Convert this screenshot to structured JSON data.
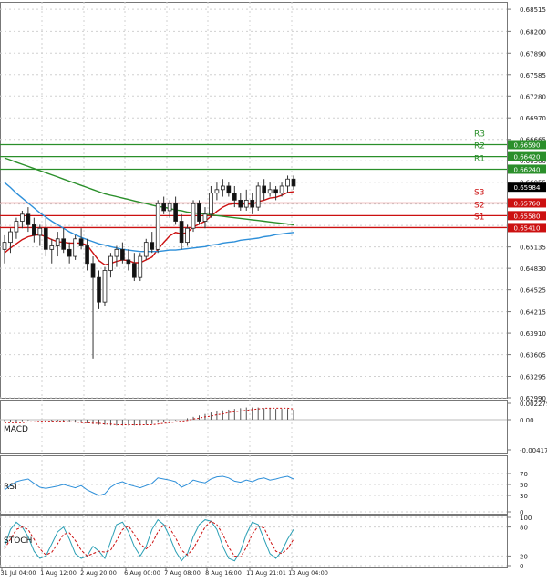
{
  "chart_data": [
    {
      "type": "candlestick",
      "panel": "price",
      "y_ticks": [
        "0.68515",
        "0.68200",
        "0.67890",
        "0.67585",
        "0.67280",
        "0.66970",
        "0.66665",
        "0.66360",
        "0.66055",
        "0.65745",
        "0.65440",
        "0.65135",
        "0.64830",
        "0.64525",
        "0.64215",
        "0.63910",
        "0.63605",
        "0.63295",
        "0.62990"
      ],
      "ylim": [
        0.6299,
        0.6862
      ],
      "candles": [
        [
          0.651,
          0.653,
          0.649,
          0.652
        ],
        [
          0.652,
          0.654,
          0.6505,
          0.6535
        ],
        [
          0.6535,
          0.6555,
          0.6525,
          0.655
        ],
        [
          0.655,
          0.6565,
          0.654,
          0.656
        ],
        [
          0.656,
          0.657,
          0.6535,
          0.6545
        ],
        [
          0.6545,
          0.6555,
          0.652,
          0.653
        ],
        [
          0.653,
          0.6545,
          0.6515,
          0.654
        ],
        [
          0.654,
          0.6555,
          0.65,
          0.651
        ],
        [
          0.651,
          0.6525,
          0.649,
          0.6515
        ],
        [
          0.6515,
          0.6535,
          0.65,
          0.6525
        ],
        [
          0.6525,
          0.654,
          0.6505,
          0.651
        ],
        [
          0.651,
          0.652,
          0.649,
          0.65
        ],
        [
          0.65,
          0.653,
          0.6495,
          0.6525
        ],
        [
          0.6525,
          0.654,
          0.651,
          0.6515
        ],
        [
          0.6515,
          0.6525,
          0.648,
          0.649
        ],
        [
          0.649,
          0.65,
          0.6355,
          0.647
        ],
        [
          0.647,
          0.648,
          0.6425,
          0.6435
        ],
        [
          0.6435,
          0.6485,
          0.643,
          0.648
        ],
        [
          0.648,
          0.6505,
          0.647,
          0.65
        ],
        [
          0.65,
          0.6515,
          0.6485,
          0.651
        ],
        [
          0.651,
          0.652,
          0.649,
          0.6495
        ],
        [
          0.6495,
          0.651,
          0.648,
          0.649
        ],
        [
          0.649,
          0.6505,
          0.6465,
          0.647
        ],
        [
          0.647,
          0.6505,
          0.6465,
          0.65
        ],
        [
          0.65,
          0.6525,
          0.6495,
          0.652
        ],
        [
          0.652,
          0.6535,
          0.6505,
          0.651
        ],
        [
          0.651,
          0.658,
          0.6505,
          0.6575
        ],
        [
          0.6575,
          0.6585,
          0.656,
          0.6565
        ],
        [
          0.6565,
          0.658,
          0.6555,
          0.6575
        ],
        [
          0.6575,
          0.6585,
          0.6545,
          0.655
        ],
        [
          0.655,
          0.656,
          0.651,
          0.652
        ],
        [
          0.652,
          0.6545,
          0.6515,
          0.654
        ],
        [
          0.654,
          0.658,
          0.6535,
          0.6575
        ],
        [
          0.6575,
          0.658,
          0.6545,
          0.655
        ],
        [
          0.655,
          0.657,
          0.654,
          0.656
        ],
        [
          0.656,
          0.66,
          0.6555,
          0.659
        ],
        [
          0.659,
          0.6605,
          0.658,
          0.6595
        ],
        [
          0.6595,
          0.661,
          0.6585,
          0.66
        ],
        [
          0.66,
          0.6605,
          0.6585,
          0.659
        ],
        [
          0.659,
          0.66,
          0.657,
          0.658
        ],
        [
          0.658,
          0.659,
          0.6565,
          0.657
        ],
        [
          0.657,
          0.6595,
          0.6565,
          0.658
        ],
        [
          0.658,
          0.659,
          0.656,
          0.657
        ],
        [
          0.657,
          0.6605,
          0.6565,
          0.66
        ],
        [
          0.66,
          0.661,
          0.658,
          0.659
        ],
        [
          0.659,
          0.6605,
          0.6585,
          0.6595
        ],
        [
          0.6595,
          0.66,
          0.658,
          0.659
        ],
        [
          0.659,
          0.6605,
          0.6585,
          0.66
        ],
        [
          0.66,
          0.6615,
          0.659,
          0.661
        ],
        [
          0.661,
          0.6615,
          0.6595,
          0.66
        ]
      ],
      "overlays": [
        {
          "color": "#cc1010",
          "values": [
            0.6505,
            0.6512,
            0.6518,
            0.6524,
            0.6528,
            0.653,
            0.6531,
            0.6528,
            0.6524,
            0.6521,
            0.652,
            0.6519,
            0.6519,
            0.6519,
            0.6516,
            0.6505,
            0.6494,
            0.6488,
            0.649,
            0.6493,
            0.6495,
            0.6494,
            0.6491,
            0.6491,
            0.6495,
            0.6499,
            0.651,
            0.652,
            0.6529,
            0.6534,
            0.6532,
            0.6534,
            0.6542,
            0.6546,
            0.655,
            0.6557,
            0.6564,
            0.657,
            0.6574,
            0.6575,
            0.6574,
            0.6575,
            0.6574,
            0.6578,
            0.658,
            0.6583,
            0.6584,
            0.6587,
            0.6591,
            0.6592
          ]
        },
        {
          "color": "#2d8fd9",
          "values": [
            0.6605,
            0.6598,
            0.659,
            0.6583,
            0.6576,
            0.6569,
            0.6562,
            0.6556,
            0.655,
            0.6545,
            0.654,
            0.6535,
            0.6531,
            0.6527,
            0.6524,
            0.6521,
            0.6518,
            0.6516,
            0.6514,
            0.6512,
            0.651,
            0.6509,
            0.6508,
            0.6507,
            0.6507,
            0.6507,
            0.6507,
            0.6508,
            0.6509,
            0.6509,
            0.651,
            0.6511,
            0.6512,
            0.6513,
            0.6514,
            0.6516,
            0.6517,
            0.6519,
            0.652,
            0.6521,
            0.6523,
            0.6524,
            0.6525,
            0.6526,
            0.6528,
            0.6529,
            0.6531,
            0.6532,
            0.6533,
            0.6534
          ]
        },
        {
          "color": "#2a8f2a",
          "values": [
            0.664,
            0.6637,
            0.6634,
            0.6631,
            0.6628,
            0.6625,
            0.6622,
            0.6619,
            0.6616,
            0.6613,
            0.661,
            0.6607,
            0.6604,
            0.6601,
            0.6598,
            0.6595,
            0.6592,
            0.6589,
            0.6587,
            0.6585,
            0.6583,
            0.6581,
            0.6579,
            0.6577,
            0.6575,
            0.6573,
            0.6571,
            0.657,
            0.6568,
            0.6566,
            0.6565,
            0.6563,
            0.6562,
            0.6561,
            0.656,
            0.6559,
            0.6558,
            0.6557,
            0.6556,
            0.6555,
            0.6554,
            0.6553,
            0.6552,
            0.6551,
            0.655,
            0.6549,
            0.6548,
            0.6547,
            0.6546,
            0.6545
          ]
        }
      ],
      "levels": [
        {
          "name": "R3",
          "value": 0.6659,
          "label": "0.66590",
          "color": "#2a8f2a"
        },
        {
          "name": "R2",
          "value": 0.6642,
          "label": "0.66420",
          "color": "#2a8f2a"
        },
        {
          "name": "R1",
          "value": 0.6624,
          "label": "0.66240",
          "color": "#2a8f2a"
        },
        {
          "name": "S3",
          "value": 0.6576,
          "label": "0.65760",
          "color": "#cc1010"
        },
        {
          "name": "S2",
          "value": 0.6558,
          "label": "0.65580",
          "color": "#cc1010"
        },
        {
          "name": "S1",
          "value": 0.6541,
          "label": "0.65410",
          "color": "#cc1010"
        }
      ],
      "current_price": "0.65984",
      "colors": {
        "up": "#2a8f2a",
        "down": "#cc1010"
      }
    },
    {
      "type": "bar",
      "panel": "macd",
      "label": "MACD",
      "y_ticks": [
        "0.002279",
        "0.00",
        "-0.004178"
      ],
      "ylim": [
        -0.004178,
        0.002279
      ],
      "values": [
        -0.0002,
        -0.0003,
        -0.0003,
        -0.0002,
        -0.0001,
        0.0,
        0.0,
        -0.0001,
        -0.0002,
        -0.0002,
        -0.0003,
        -0.0003,
        -0.0004,
        -0.0004,
        -0.0005,
        -0.0006,
        -0.0007,
        -0.0007,
        -0.0008,
        -0.0008,
        -0.0008,
        -0.0008,
        -0.0008,
        -0.0008,
        -0.0007,
        -0.0006,
        -0.0004,
        -0.0003,
        -0.0002,
        -0.0001,
        0.0,
        0.0002,
        0.0004,
        0.0006,
        0.0008,
        0.001,
        0.0012,
        0.0013,
        0.0014,
        0.0015,
        0.0016,
        0.0017,
        0.0017,
        0.0017,
        0.0016,
        0.0016,
        0.0015,
        0.0015,
        0.0015,
        0.0014
      ],
      "signal": [
        -0.0004,
        -0.0004,
        -0.0004,
        -0.0004,
        -0.0003,
        -0.0003,
        -0.0002,
        -0.0002,
        -0.0002,
        -0.0002,
        -0.0002,
        -0.0003,
        -0.0003,
        -0.0004,
        -0.0004,
        -0.0005,
        -0.0005,
        -0.0006,
        -0.0006,
        -0.0007,
        -0.0007,
        -0.0007,
        -0.0007,
        -0.0007,
        -0.0007,
        -0.0007,
        -0.0006,
        -0.0005,
        -0.0004,
        -0.0003,
        -0.0002,
        -0.0001,
        0.0001,
        0.0002,
        0.0004,
        0.0005,
        0.0007,
        0.0008,
        0.001,
        0.0011,
        0.0012,
        0.0013,
        0.0014,
        0.0015,
        0.0016,
        0.0016,
        0.0016,
        0.0016,
        0.0016,
        0.0015
      ]
    },
    {
      "type": "line",
      "panel": "rsi",
      "label": "RSI",
      "y_ticks": [
        "70",
        "50",
        "30",
        "0"
      ],
      "ylim": [
        0,
        100
      ],
      "values": [
        40,
        48,
        55,
        58,
        60,
        52,
        45,
        43,
        45,
        47,
        50,
        47,
        44,
        48,
        40,
        35,
        30,
        33,
        45,
        52,
        55,
        50,
        47,
        44,
        48,
        52,
        62,
        60,
        58,
        55,
        45,
        50,
        58,
        55,
        53,
        60,
        64,
        65,
        62,
        56,
        54,
        58,
        55,
        60,
        62,
        58,
        60,
        63,
        65,
        60
      ]
    },
    {
      "type": "line",
      "panel": "stoch",
      "label": "STOCH",
      "y_ticks": [
        "100",
        "80",
        "20",
        "0"
      ],
      "ylim": [
        0,
        100
      ],
      "k": [
        40,
        75,
        90,
        80,
        60,
        30,
        15,
        20,
        45,
        70,
        80,
        55,
        25,
        15,
        20,
        40,
        30,
        15,
        50,
        85,
        90,
        70,
        40,
        20,
        40,
        75,
        95,
        85,
        60,
        30,
        10,
        25,
        60,
        85,
        95,
        92,
        75,
        40,
        15,
        10,
        30,
        65,
        90,
        85,
        55,
        25,
        15,
        30,
        55,
        75
      ],
      "d": [
        35,
        55,
        75,
        80,
        75,
        55,
        35,
        22,
        28,
        45,
        65,
        68,
        52,
        32,
        20,
        25,
        30,
        28,
        32,
        52,
        75,
        82,
        65,
        45,
        35,
        45,
        70,
        85,
        78,
        58,
        32,
        22,
        35,
        58,
        80,
        92,
        85,
        65,
        38,
        20,
        18,
        38,
        65,
        82,
        78,
        52,
        30,
        25,
        35,
        55
      ]
    }
  ],
  "x_axis_labels": [
    "31 Jul 04:00",
    "1 Aug 12:00",
    "2 Aug 20:00",
    "6 Aug 00:00",
    "7 Aug 08:00",
    "8 Aug 16:00",
    "11 Aug 21:01",
    "13 Aug 04:00"
  ],
  "colors": {
    "grid": "#d0d0d0",
    "zero": "#bbbbbb",
    "price_tag_bg": "#000000",
    "macd_hist": "#555555",
    "macd_signal": "#cc1010",
    "rsi": "#2d8fd9",
    "stoch_k": "#2a9fb5",
    "stoch_d": "#cc1010"
  }
}
